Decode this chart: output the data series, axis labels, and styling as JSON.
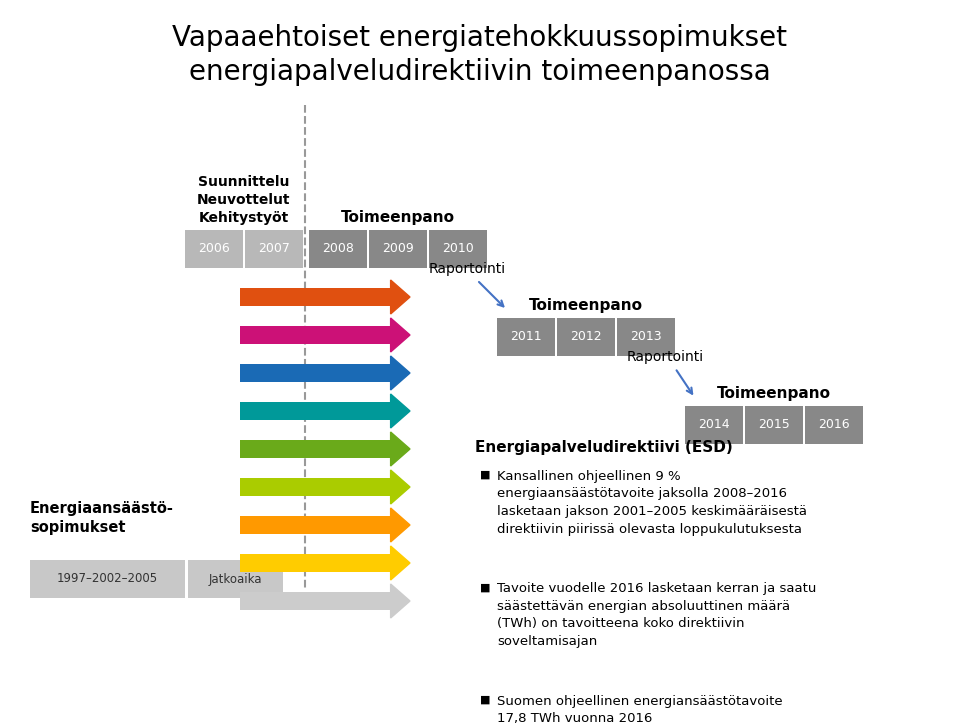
{
  "title_line1": "Vapaaehtoiset energiatehokkuussopimukset",
  "title_line2": "energiapalveludirektiivin toimeenpanossa",
  "bg_color": "#ffffff",
  "arrow_colors": [
    "#e05010",
    "#cc1177",
    "#1a6ab5",
    "#009999",
    "#6aaa1a",
    "#aacc00",
    "#ff9900",
    "#ffcc00",
    "#cccccc"
  ],
  "esd_title": "Energiapalveludirektiivi (ESD)",
  "bullet1": "Kansallinen ohjeellinen 9 %\nenergiaansäästötavoite jaksolla 2008–2016\nlasketaan jakson 2001–2005 keskimääräisestä\ndirektiivin piirissä olevasta loppukulutuksesta",
  "bullet2": "Tavoite vuodelle 2016 lasketaan kerran ja saatu\nsäästettävän energian absoluuttinen määrä\n(TWh) on tavoitteena koko direktiivin\nsoveltamisajan",
  "bullet3": "Suomen ohjeellinen energiansäästötavoite\n17,8 TWh vuonna 2016",
  "label_suunnittelu": "Suunnittelu\nNeuvottelut\nKehitystyöt",
  "label_toimeenpano": "Toimeenpano",
  "label_raportointi": "Raportointi",
  "label_energiansaasto": "Energiaansäästö-\nsopimukset",
  "label_jatkoaika": "Jatkoaika",
  "label_vuodet_bottom": "1997–2002–2005"
}
